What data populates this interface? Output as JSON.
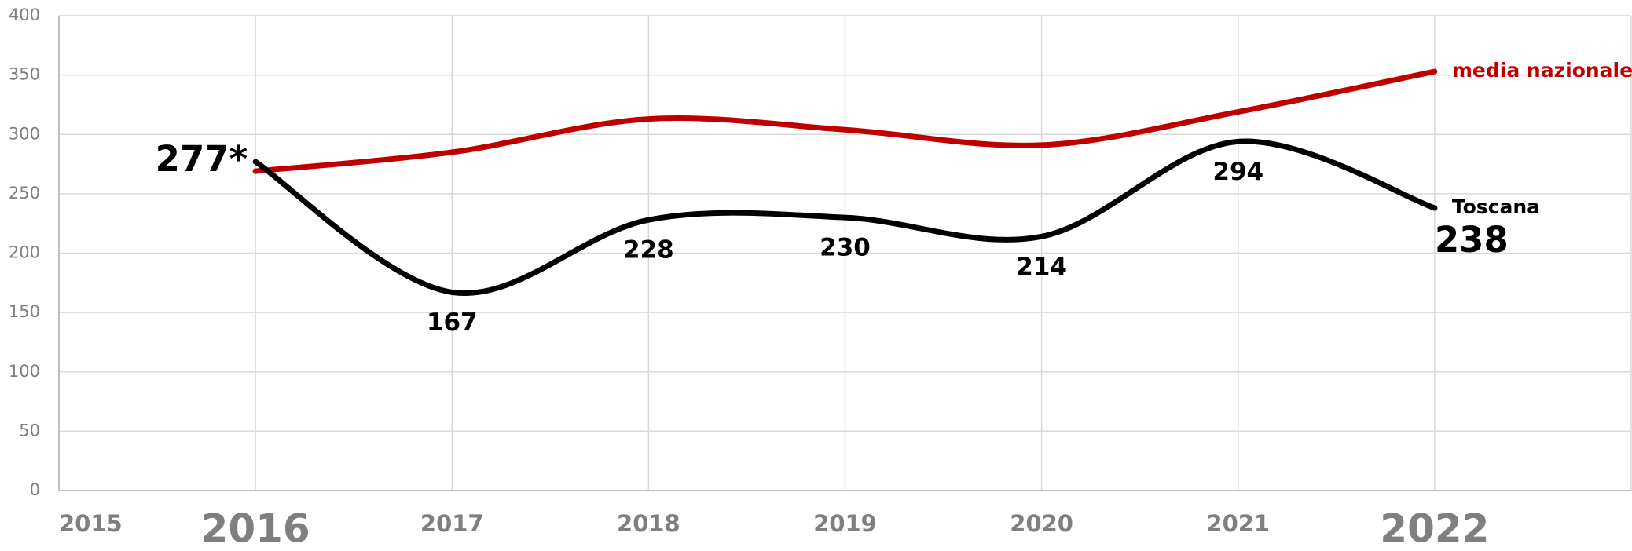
{
  "chart_data": {
    "type": "line",
    "x": [
      2016,
      2017,
      2018,
      2019,
      2020,
      2021,
      2022
    ],
    "series": [
      {
        "name": "media nazionale",
        "color": "#c00000",
        "values": [
          269,
          285,
          313,
          304,
          291,
          319,
          353
        ]
      },
      {
        "name": "Toscana",
        "color": "#000000",
        "values": [
          277,
          167,
          228,
          230,
          214,
          294,
          238
        ],
        "value_labels": [
          "277*",
          "167",
          "228",
          "230",
          "214",
          "294",
          "238"
        ]
      }
    ],
    "xlim": [
      2015,
      2023
    ],
    "xticks": [
      2015,
      2016,
      2017,
      2018,
      2019,
      2020,
      2021,
      2022
    ],
    "ylim": [
      0,
      400
    ],
    "yticks": [
      0,
      50,
      100,
      150,
      200,
      250,
      300,
      350,
      400
    ],
    "grid": true,
    "smooth": true
  }
}
